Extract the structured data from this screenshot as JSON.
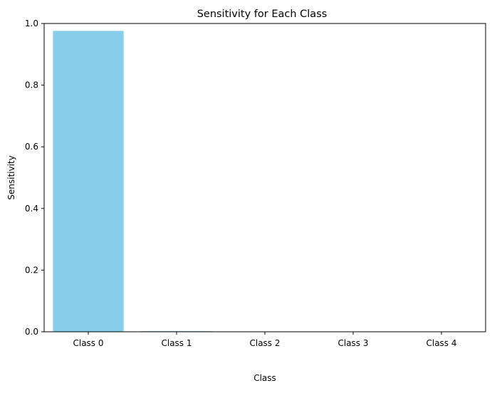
{
  "chart_data": {
    "type": "bar",
    "title": "Sensitivity for Each Class",
    "xlabel": "Class",
    "ylabel": "Sensitivity",
    "categories": [
      "Class 0",
      "Class 1",
      "Class 2",
      "Class 3",
      "Class 4"
    ],
    "values": [
      0.976,
      0.002,
      0.0,
      0.0,
      0.0
    ],
    "ylim": [
      0,
      1.0
    ],
    "yticks": [
      "0.0",
      "0.2",
      "0.4",
      "0.6",
      "0.8",
      "1.0"
    ],
    "grid": false,
    "legend": "none",
    "bar_color": "#87CEEB"
  }
}
